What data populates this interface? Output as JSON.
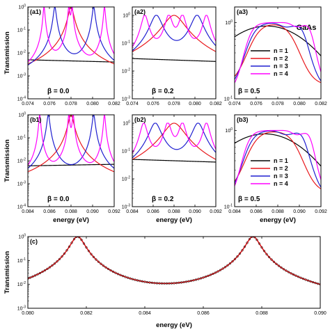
{
  "material": "GaAs",
  "colors": {
    "n1": "#000000",
    "n2": "#e8171b",
    "n3": "#1f1fd0",
    "n4": "#ff00ff",
    "markers": "#000000"
  },
  "chart_data": [
    {
      "id": "a1",
      "type": "line",
      "panel_label": "(a1)",
      "annotation": "β = 0.0",
      "ylabel": "Transmission",
      "xlabel": "",
      "yscale": "log",
      "xlim": [
        0.074,
        0.082
      ],
      "ylim": [
        0.0001,
        1
      ],
      "xticks": [
        "0.074",
        "0.076",
        "0.078",
        "0.080",
        "0.082"
      ],
      "yticks": [
        "10-4",
        "10-3",
        "10-2",
        "10-1",
        "10 0"
      ],
      "series": [
        {
          "name": "n = 1",
          "kind": "tilt",
          "start": 0.005,
          "end": 0.004
        },
        {
          "name": "n = 2",
          "kind": "peaks",
          "peaks": [
            0.078
          ],
          "gamma": 0.00022,
          "base": 0.0003
        },
        {
          "name": "n = 3",
          "kind": "peaks",
          "peaks": [
            0.0765,
            0.0801
          ],
          "gamma": 0.00012,
          "base": 0.0003
        },
        {
          "name": "n = 4",
          "kind": "peaks",
          "peaks": [
            0.0755,
            0.0778,
            0.0781,
            0.0811
          ],
          "gamma": 8e-05,
          "base": 0.00018
        }
      ]
    },
    {
      "id": "a2",
      "type": "line",
      "panel_label": "(a2)",
      "annotation": "β = 0.2",
      "ylabel": "",
      "xlabel": "",
      "yscale": "log",
      "xlim": [
        0.074,
        0.082
      ],
      "ylim": [
        0.001,
        2
      ],
      "xticks": [
        "0.074",
        "0.076",
        "0.078",
        "0.080",
        "0.082"
      ],
      "yticks": [
        "10-3",
        "10-2",
        "10-1",
        "10 0"
      ],
      "series": [
        {
          "name": "n = 1",
          "kind": "tilt",
          "start": 0.028,
          "end": 0.022
        },
        {
          "name": "n = 2",
          "kind": "peaks",
          "peaks": [
            0.078
          ],
          "gamma": 0.0009,
          "base": 0.0015
        },
        {
          "name": "n = 3",
          "kind": "peaks",
          "peaks": [
            0.0763,
            0.0802
          ],
          "gamma": 0.0005,
          "base": 0.0015
        },
        {
          "name": "n = 4",
          "kind": "peaks",
          "peaks": [
            0.0752,
            0.0775,
            0.0788,
            0.0811
          ],
          "gamma": 0.0003,
          "base": 0.0012
        }
      ]
    },
    {
      "id": "a3",
      "type": "line",
      "panel_label": "(a3)",
      "annotation": "β = 0.5",
      "ylabel": "",
      "xlabel": "",
      "yscale": "log",
      "xlim": [
        0.074,
        0.082
      ],
      "ylim": [
        0.1,
        1.6
      ],
      "xticks": [
        "0.074",
        "0.076",
        "0.078",
        "0.080",
        "0.082"
      ],
      "yticks": [
        "10-1",
        "10 0"
      ],
      "legend": [
        "n = 1",
        "n = 2",
        "n = 3",
        "n = 4"
      ],
      "series": [
        {
          "name": "n = 1",
          "kind": "hump",
          "center": 0.077,
          "peak": 0.9,
          "width": 0.006,
          "floor": 0.25
        },
        {
          "name": "n = 2",
          "kind": "plateau",
          "low": 0.0757,
          "high": 0.0795,
          "edge": 0.0006,
          "floor": 0.15
        },
        {
          "name": "n = 3",
          "kind": "plateau",
          "low": 0.0754,
          "high": 0.0805,
          "edge": 0.0005,
          "floor": 0.13,
          "bump": 0.0802
        },
        {
          "name": "n = 4",
          "kind": "plateau",
          "low": 0.0752,
          "high": 0.0812,
          "edge": 0.0004,
          "floor": 0.12,
          "bump": 0.0809
        }
      ]
    },
    {
      "id": "b1",
      "type": "line",
      "panel_label": "(b1)",
      "annotation": "β = 0.0",
      "ylabel": "Transmission",
      "xlabel": "energy (eV)",
      "yscale": "log",
      "xlim": [
        0.084,
        0.092
      ],
      "ylim": [
        0.0001,
        1
      ],
      "xticks": [
        "0.084",
        "0.086",
        "0.088",
        "0.090",
        "0.092"
      ],
      "yticks": [
        "10-4",
        "10-3",
        "10-2",
        "10-1",
        "10 0"
      ],
      "series": [
        {
          "name": "n = 1",
          "kind": "tilt",
          "start": 0.006,
          "end": 0.007
        },
        {
          "name": "n = 2",
          "kind": "peaks",
          "peaks": [
            0.088
          ],
          "gamma": 0.00022,
          "base": 0.0003
        },
        {
          "name": "n = 3",
          "kind": "peaks",
          "peaks": [
            0.0859,
            0.0901
          ],
          "gamma": 0.00012,
          "base": 0.0003
        },
        {
          "name": "n = 4",
          "kind": "peaks",
          "peaks": [
            0.0851,
            0.0878,
            0.0882,
            0.0911
          ],
          "gamma": 8e-05,
          "base": 0.00018
        }
      ]
    },
    {
      "id": "b2",
      "type": "line",
      "panel_label": "(b2)",
      "annotation": "β = 0.2",
      "ylabel": "",
      "xlabel": "energy (eV)",
      "yscale": "log",
      "xlim": [
        0.084,
        0.092
      ],
      "ylim": [
        0.001,
        2
      ],
      "xticks": [
        "0.084",
        "0.086",
        "0.088",
        "0.090",
        "0.092"
      ],
      "yticks": [
        "10-3",
        "10-2",
        "10-1",
        "10 0"
      ],
      "series": [
        {
          "name": "n = 1",
          "kind": "tilt",
          "start": 0.05,
          "end": 0.04
        },
        {
          "name": "n = 2",
          "kind": "peaks",
          "peaks": [
            0.088
          ],
          "gamma": 0.0009,
          "base": 0.0015
        },
        {
          "name": "n = 3",
          "kind": "peaks",
          "peaks": [
            0.0862,
            0.0903
          ],
          "gamma": 0.0005,
          "base": 0.0015
        },
        {
          "name": "n = 4",
          "kind": "peaks",
          "peaks": [
            0.0851,
            0.0874,
            0.0888,
            0.0911
          ],
          "gamma": 0.0003,
          "base": 0.0012
        }
      ]
    },
    {
      "id": "b3",
      "type": "line",
      "panel_label": "(b3)",
      "annotation": "β = 0.5",
      "ylabel": "",
      "xlabel": "energy (eV)",
      "yscale": "log",
      "xlim": [
        0.084,
        0.092
      ],
      "ylim": [
        0.1,
        1.6
      ],
      "xticks": [
        "0.084",
        "0.086",
        "0.088",
        "0.090",
        "0.092"
      ],
      "yticks": [
        "10-1",
        "10 0"
      ],
      "legend": [
        "n = 1",
        "n = 2",
        "n = 3",
        "n = 4"
      ],
      "series": [
        {
          "name": "n = 1",
          "kind": "hump",
          "center": 0.0868,
          "peak": 0.9,
          "width": 0.006,
          "floor": 0.25
        },
        {
          "name": "n = 2",
          "kind": "plateau",
          "low": 0.0855,
          "high": 0.0898,
          "edge": 0.0006,
          "floor": 0.15
        },
        {
          "name": "n = 3",
          "kind": "plateau",
          "low": 0.0852,
          "high": 0.0906,
          "edge": 0.0005,
          "floor": 0.13,
          "bump": 0.0902
        },
        {
          "name": "n = 4",
          "kind": "plateau",
          "low": 0.085,
          "high": 0.0912,
          "edge": 0.0004,
          "floor": 0.12,
          "bump": 0.0909
        }
      ]
    },
    {
      "id": "c",
      "type": "line",
      "panel_label": "(c)",
      "annotation": "",
      "ylabel": "Transmission",
      "xlabel": "energy (eV)",
      "yscale": "log",
      "xlim": [
        0.08,
        0.09
      ],
      "ylim": [
        0.001,
        1
      ],
      "xticks": [
        "0.080",
        "0.082",
        "0.084",
        "0.086",
        "0.088",
        "0.090"
      ],
      "yticks": [
        "10-3",
        "10-2",
        "10-1",
        "10 0"
      ],
      "series": [
        {
          "name": "line",
          "kind": "peaks",
          "peaks": [
            0.0817,
            0.0877
          ],
          "gamma": 0.00022,
          "base": 0.0002
        },
        {
          "name": "markers",
          "kind": "peaks",
          "peaks": [
            0.0817,
            0.0877
          ],
          "gamma": 0.00022,
          "base": 0.0002,
          "markers": true
        }
      ]
    }
  ]
}
